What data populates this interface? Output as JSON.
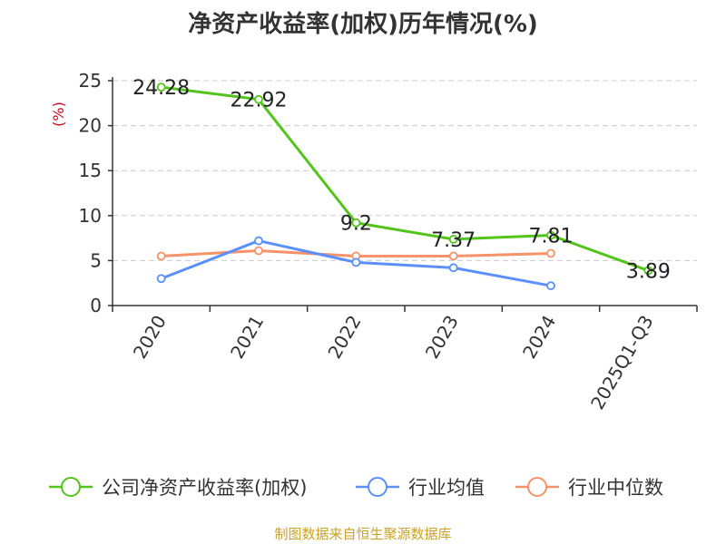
{
  "chart_data": {
    "type": "line",
    "title": "净资产收益率(加权)历年情况(%)",
    "ylabel": "(%)",
    "xlabel": "",
    "ylim": [
      0,
      25
    ],
    "yticks": [
      0,
      5,
      10,
      15,
      20,
      25
    ],
    "categories": [
      "2020",
      "2021",
      "2022",
      "2023",
      "2024",
      "2025Q1-Q3"
    ],
    "series": [
      {
        "name": "公司净资产收益率(加权)",
        "color": "#52c41a",
        "values": [
          24.28,
          22.92,
          9.2,
          7.37,
          7.81,
          3.89
        ],
        "labels": [
          "24.28",
          "22.92",
          "9.2",
          "7.37",
          "7.81",
          "3.89"
        ]
      },
      {
        "name": "行业均值",
        "color": "#5b8ff9",
        "values": [
          3.0,
          7.2,
          4.8,
          4.2,
          2.2,
          null
        ]
      },
      {
        "name": "行业中位数",
        "color": "#f6936b",
        "values": [
          5.5,
          6.1,
          5.5,
          5.5,
          5.8,
          null
        ]
      }
    ],
    "grid": true,
    "legend_position": "bottom"
  },
  "source": {
    "text": "制图数据来自恒生聚源数据库",
    "color": "#c9a227"
  }
}
